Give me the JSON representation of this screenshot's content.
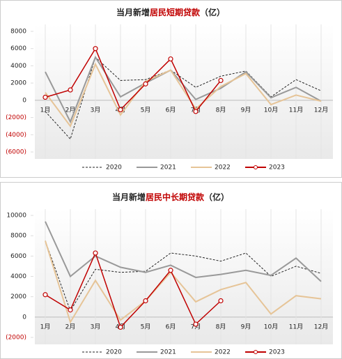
{
  "chart_data": [
    {
      "type": "line",
      "title": [
        "当月新增",
        "居民短期贷款",
        "（亿）"
      ],
      "categories": [
        "1月",
        "2月",
        "3月",
        "4月",
        "5月",
        "6月",
        "7月",
        "8月",
        "9月",
        "10月",
        "11月",
        "12月"
      ],
      "ylim": [
        -6000,
        8000
      ],
      "yticks": [
        {
          "value": -6000,
          "label": "(6000)"
        },
        {
          "value": -4000,
          "label": "(4000)"
        },
        {
          "value": -2000,
          "label": "(2000)"
        },
        0,
        2000,
        4000,
        6000,
        8000
      ],
      "series": [
        {
          "name": "2020",
          "color": "#222222",
          "dash": true,
          "values": [
            -1300,
            -4500,
            5000,
            2300,
            2400,
            3500,
            1500,
            2800,
            3400,
            400,
            2400,
            1100
          ]
        },
        {
          "name": "2021",
          "color": "#999999",
          "values": [
            3300,
            -2500,
            5000,
            400,
            2000,
            3500,
            100,
            1400,
            3300,
            300,
            1500,
            -100
          ]
        },
        {
          "name": "2022",
          "color": "#e6c497",
          "values": [
            900,
            -3000,
            4200,
            -1700,
            2200,
            3500,
            -1000,
            1600,
            3100,
            -500,
            600,
            -100
          ]
        },
        {
          "name": "2023",
          "color": "#c00000",
          "markers": true,
          "values": [
            350,
            1200,
            6000,
            -1100,
            1900,
            4800,
            -1300,
            2300,
            null,
            null,
            null,
            null
          ]
        }
      ]
    },
    {
      "type": "line",
      "title": [
        "当月新增",
        "居民中长期贷款",
        "（亿）"
      ],
      "categories": [
        "1月",
        "2月",
        "3月",
        "4月",
        "5月",
        "6月",
        "7月",
        "8月",
        "9月",
        "10月",
        "11月",
        "12月"
      ],
      "ylim": [
        -2000,
        10000
      ],
      "yticks": [
        {
          "value": -2000,
          "label": "(2000)"
        },
        0,
        2000,
        4000,
        6000,
        8000,
        10000
      ],
      "series": [
        {
          "name": "2020",
          "color": "#222222",
          "dash": true,
          "values": [
            7500,
            600,
            4700,
            4400,
            4500,
            6300,
            6000,
            5500,
            6300,
            4000,
            5000,
            4300
          ]
        },
        {
          "name": "2021",
          "color": "#999999",
          "values": [
            9400,
            4000,
            6000,
            4900,
            4400,
            5100,
            3900,
            4200,
            4600,
            4100,
            5800,
            3500
          ]
        },
        {
          "name": "2022",
          "color": "#e6c497",
          "values": [
            7500,
            -500,
            3600,
            -300,
            1600,
            4400,
            1500,
            2700,
            3400,
            300,
            2100,
            1800
          ]
        },
        {
          "name": "2023",
          "color": "#c00000",
          "markers": true,
          "values": [
            2200,
            700,
            6300,
            -1000,
            1600,
            4600,
            -700,
            1600,
            null,
            null,
            null,
            null
          ]
        }
      ]
    }
  ]
}
